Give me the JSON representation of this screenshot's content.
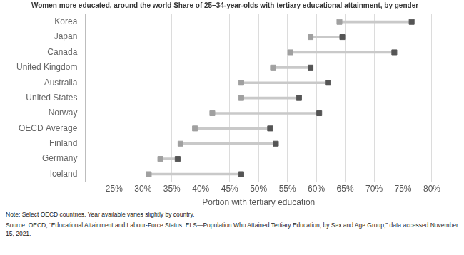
{
  "chart_data": {
    "type": "dumbbell",
    "orientation": "horizontal",
    "title": "Women more educated, around the world Share of 25–34-year-olds with tertiary educational attainment, by gender",
    "x_label": "Portion with tertiary education",
    "categories": [
      "Korea",
      "Japan",
      "Canada",
      "United Kingdom",
      "Australia",
      "United States",
      "Norway",
      "OECD Average",
      "Finland",
      "Germany",
      "Iceland"
    ],
    "series": [
      {
        "color": "#a0a0a0",
        "marker": "square",
        "values": [
          64,
          59,
          55.5,
          52.5,
          47,
          47,
          42,
          39,
          36.5,
          33,
          31
        ]
      },
      {
        "color": "#555555",
        "marker": "square",
        "values": [
          76.5,
          64.5,
          73.5,
          59,
          62,
          57,
          60.5,
          52,
          53,
          36,
          47
        ]
      }
    ],
    "xlim": [
      20,
      80
    ],
    "xticks": [
      {
        "value": 25,
        "label": "25%"
      },
      {
        "value": 30,
        "label": "30%"
      },
      {
        "value": 35,
        "label": "35%"
      },
      {
        "value": 40,
        "label": "40%"
      },
      {
        "value": 45,
        "label": "45%"
      },
      {
        "value": 50,
        "label": "50%"
      },
      {
        "value": 55,
        "label": "55%"
      },
      {
        "value": 60,
        "label": "60%"
      },
      {
        "value": 65,
        "label": "65%"
      },
      {
        "value": 70,
        "label": "70%"
      },
      {
        "value": 75,
        "label": "75%"
      },
      {
        "value": 80,
        "label": "80%"
      }
    ],
    "grid": true,
    "annotations": [
      "Note: Select OECD countries. Year available varies slightly by country.",
      "Source: OECD, “Educational Attainment and Labour-Force Status: ELS—Population Who Attained Tertiary Education, by Sex and Age Group,” data accessed November 15, 2021."
    ]
  }
}
